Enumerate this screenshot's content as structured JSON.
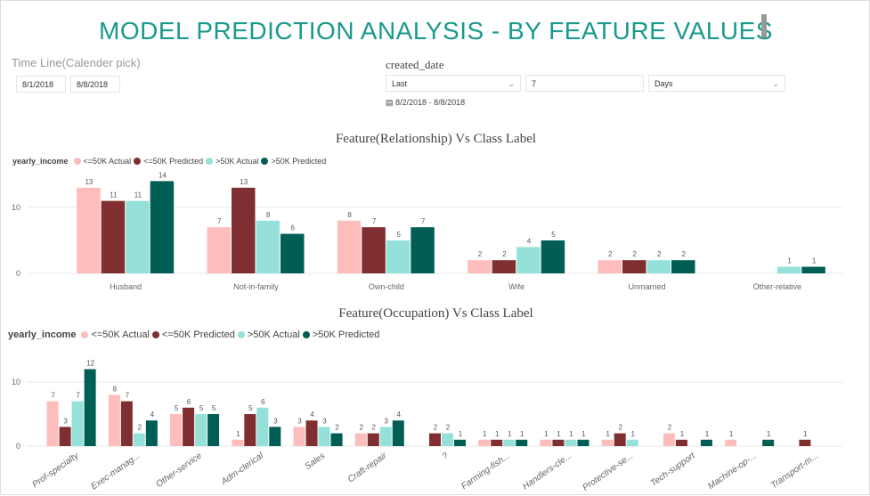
{
  "title": "MODEL PREDICTION ANALYSIS - BY FEATURE VALUES",
  "timeline": {
    "label": "Time Line(Calender pick)",
    "start": "8/1/2018",
    "end": "8/8/2018"
  },
  "created_date": {
    "label": "created_date",
    "mode": "Last",
    "count": "7",
    "unit": "Days",
    "range": "8/2/2018 - 8/8/2018",
    "icon": "calendar-icon"
  },
  "colors": {
    "title": "#1a9a8c",
    "le50_actual": "#fdbdbd",
    "le50_pred": "#7f2f2f",
    "gt50_actual": "#95e1d9",
    "gt50_pred": "#005e54"
  },
  "legend": {
    "title": "yearly_income",
    "items": [
      "<=50K Actual",
      "<=50K Predicted",
      ">50K Actual",
      ">50K Predicted"
    ]
  },
  "chart_data": [
    {
      "type": "bar",
      "title": "Feature(Relationship) Vs Class Label",
      "yticks": [
        0,
        10
      ],
      "ylim": [
        0,
        15
      ],
      "grid": true,
      "legend": "top-left",
      "categories": [
        "Husband",
        "Not-in-family",
        "Own-child",
        "Wife",
        "Unmarried",
        "Other-relative"
      ],
      "series": [
        {
          "name": "<=50K Actual",
          "values": [
            13,
            7,
            8,
            2,
            2,
            null
          ]
        },
        {
          "name": "<=50K Predicted",
          "values": [
            11,
            13,
            7,
            2,
            2,
            null
          ]
        },
        {
          "name": ">50K Actual",
          "values": [
            11,
            8,
            5,
            4,
            2,
            1
          ]
        },
        {
          "name": ">50K Predicted",
          "values": [
            14,
            6,
            7,
            5,
            2,
            1
          ]
        }
      ]
    },
    {
      "type": "bar",
      "title": "Feature(Occupation) Vs Class Label",
      "yticks": [
        0,
        10
      ],
      "ylim": [
        0,
        13
      ],
      "grid": true,
      "legend": "top-left",
      "categories": [
        "Prof-specialty",
        "Exec-manag...",
        "Other-service",
        "Adm-clerical",
        "Sales",
        "Craft-repair",
        "?",
        "Farming-fish...",
        "Handlers-cle...",
        "Protective-se...",
        "Tech-support",
        "Machine-op-...",
        "Transport-m..."
      ],
      "series": [
        {
          "name": "<=50K Actual",
          "values": [
            7,
            8,
            5,
            1,
            3,
            2,
            null,
            1,
            1,
            1,
            2,
            1,
            null
          ]
        },
        {
          "name": "<=50K Predicted",
          "values": [
            3,
            7,
            6,
            5,
            4,
            2,
            2,
            1,
            1,
            2,
            1,
            null,
            1
          ]
        },
        {
          "name": ">50K Actual",
          "values": [
            7,
            2,
            5,
            6,
            3,
            3,
            2,
            1,
            1,
            1,
            null,
            null,
            null
          ]
        },
        {
          "name": ">50K Predicted",
          "values": [
            12,
            4,
            5,
            3,
            2,
            4,
            1,
            1,
            1,
            null,
            1,
            1,
            null
          ]
        }
      ]
    }
  ]
}
